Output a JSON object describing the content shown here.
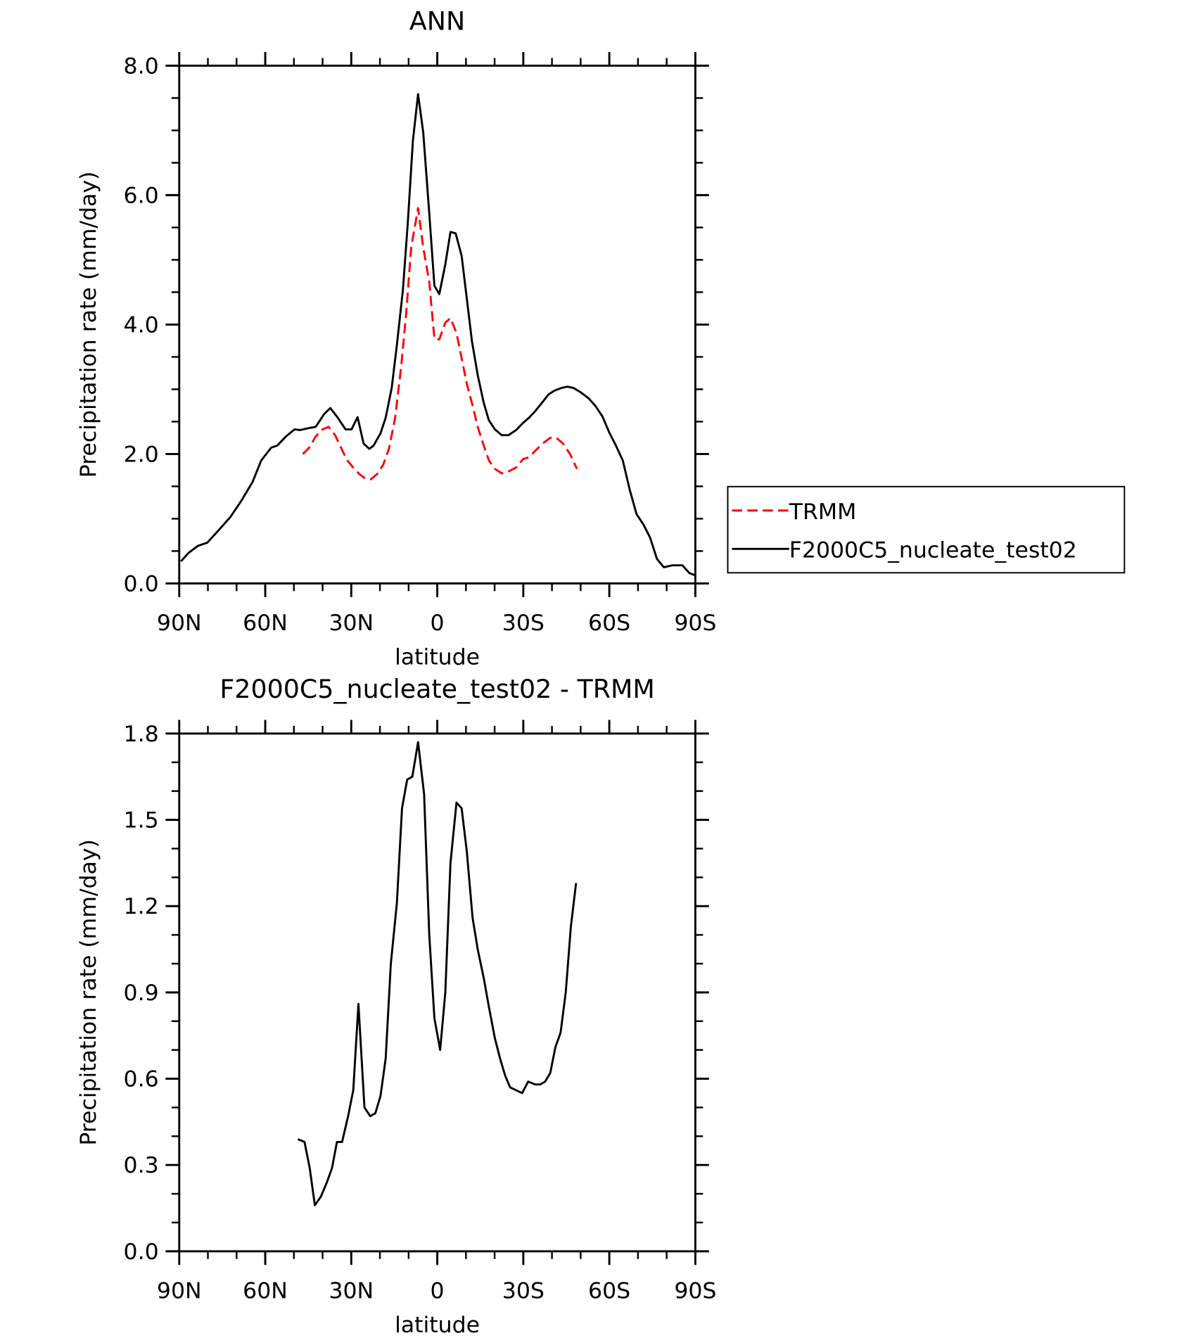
{
  "chart_data": [
    {
      "type": "line",
      "title": "ANN",
      "xlabel": "latitude",
      "ylabel": "Precipitation rate (mm/day)",
      "xlim": [
        90,
        -90
      ],
      "xticks": [
        {
          "value": 90,
          "label": "90N"
        },
        {
          "value": 60,
          "label": "60N"
        },
        {
          "value": 30,
          "label": "30N"
        },
        0,
        {
          "value": -30,
          "label": "30S"
        },
        {
          "value": -60,
          "label": "60S"
        },
        {
          "value": -90,
          "label": "90S"
        }
      ],
      "xminor": 10,
      "ylim": [
        0,
        8
      ],
      "yticks": [
        {
          "value": 0,
          "label": "0.0"
        },
        {
          "value": 2,
          "label": "2.0"
        },
        {
          "value": 4,
          "label": "4.0"
        },
        {
          "value": 6,
          "label": "6.0"
        },
        {
          "value": 8,
          "label": "8.0"
        }
      ],
      "yminor": 0.5,
      "legend": "right",
      "series": [
        {
          "name": "TRMM",
          "color": "#ff0000",
          "dashed": true,
          "x": [
            46.9,
            44.8,
            42.4,
            40.0,
            37.9,
            35.6,
            33.5,
            31.4,
            29.3,
            27.2,
            25.1,
            23.1,
            21.0,
            18.9,
            16.8,
            14.7,
            12.6,
            10.9,
            9.1,
            6.7,
            4.9,
            2.8,
            1.0,
            -0.7,
            -2.8,
            -4.6,
            -6.7,
            -8.5,
            -10.3,
            -12.3,
            -14.1,
            -16.2,
            -18.0,
            -20.1,
            -22.5,
            -24.8,
            -27.5,
            -29.9,
            -32.0,
            -34.4,
            -36.7,
            -39.4,
            -41.5,
            -43.9,
            -46.3,
            -48.7
          ],
          "values": [
            2.0,
            2.09,
            2.27,
            2.38,
            2.42,
            2.29,
            2.09,
            1.9,
            1.79,
            1.69,
            1.62,
            1.61,
            1.69,
            1.83,
            2.09,
            2.56,
            3.35,
            4.14,
            5.19,
            5.8,
            5.19,
            4.66,
            3.78,
            3.77,
            4.03,
            4.1,
            3.87,
            3.48,
            3.08,
            2.75,
            2.42,
            2.13,
            1.9,
            1.77,
            1.7,
            1.73,
            1.79,
            1.92,
            1.95,
            2.06,
            2.16,
            2.25,
            2.25,
            2.16,
            2.0,
            1.77
          ]
        },
        {
          "name": "F2000C5_nucleate_test02",
          "color": "#000000",
          "dashed": false,
          "x": [
            89.4,
            86.8,
            83.5,
            80.2,
            76.3,
            72.1,
            68.3,
            64.4,
            61.4,
            57.9,
            55.8,
            52.8,
            49.8,
            47.8,
            44.8,
            42.4,
            39.4,
            37.3,
            34.7,
            32.0,
            29.9,
            27.8,
            25.7,
            23.7,
            22.2,
            19.8,
            18.0,
            15.9,
            14.1,
            12.0,
            10.3,
            8.5,
            6.7,
            4.9,
            2.8,
            1.0,
            -0.7,
            -2.8,
            -4.6,
            -6.4,
            -8.5,
            -10.3,
            -12.1,
            -14.1,
            -16.2,
            -18.0,
            -20.1,
            -22.5,
            -24.8,
            -27.5,
            -29.9,
            -32.0,
            -34.1,
            -36.5,
            -38.8,
            -40.9,
            -43.3,
            -45.4,
            -47.5,
            -49.8,
            -52.8,
            -55.2,
            -57.6,
            -60.0,
            -62.3,
            -64.7,
            -67.1,
            -69.5,
            -71.9,
            -74.2,
            -76.6,
            -79.0,
            -82.0,
            -85.5,
            -87.9,
            -89.7
          ],
          "values": [
            0.34,
            0.47,
            0.58,
            0.63,
            0.82,
            1.03,
            1.28,
            1.57,
            1.9,
            2.1,
            2.13,
            2.27,
            2.38,
            2.37,
            2.4,
            2.42,
            2.62,
            2.71,
            2.56,
            2.38,
            2.38,
            2.57,
            2.16,
            2.08,
            2.13,
            2.32,
            2.56,
            3.02,
            3.68,
            4.53,
            5.56,
            6.84,
            7.56,
            6.97,
            5.72,
            4.6,
            4.47,
            4.93,
            5.43,
            5.41,
            5.06,
            4.4,
            3.74,
            3.22,
            2.79,
            2.52,
            2.38,
            2.29,
            2.29,
            2.37,
            2.48,
            2.56,
            2.66,
            2.79,
            2.92,
            2.98,
            3.02,
            3.04,
            3.02,
            2.96,
            2.86,
            2.74,
            2.58,
            2.33,
            2.13,
            1.9,
            1.45,
            1.07,
            0.91,
            0.71,
            0.38,
            0.25,
            0.28,
            0.28,
            0.16,
            0.13
          ]
        }
      ]
    },
    {
      "type": "line",
      "title": "F2000C5_nucleate_test02 - TRMM",
      "xlabel": "latitude",
      "ylabel": "Precipitation rate (mm/day)",
      "xlim": [
        90,
        -90
      ],
      "xticks": [
        {
          "value": 90,
          "label": "90N"
        },
        {
          "value": 60,
          "label": "60N"
        },
        {
          "value": 30,
          "label": "30N"
        },
        0,
        {
          "value": -30,
          "label": "30S"
        },
        {
          "value": -60,
          "label": "60S"
        },
        {
          "value": -90,
          "label": "90S"
        }
      ],
      "xminor": 10,
      "ylim": [
        0,
        1.8
      ],
      "yticks": [
        {
          "value": 0,
          "label": "0.0"
        },
        0.3,
        0.6,
        0.9,
        1.2,
        1.5,
        1.8
      ],
      "yminor": 0.1,
      "series": [
        {
          "color": "#000000",
          "dashed": false,
          "x": [
            48.6,
            46.3,
            44.5,
            42.7,
            40.6,
            38.5,
            36.7,
            35.0,
            33.2,
            31.1,
            29.3,
            27.5,
            25.4,
            23.4,
            21.6,
            19.8,
            18.0,
            16.2,
            14.1,
            12.3,
            10.5,
            8.7,
            6.7,
            4.6,
            2.8,
            1.0,
            -1.0,
            -2.8,
            -4.6,
            -6.7,
            -8.5,
            -10.3,
            -12.3,
            -14.1,
            -16.2,
            -18.0,
            -20.1,
            -21.9,
            -23.7,
            -25.4,
            -27.5,
            -29.6,
            -31.7,
            -34.1,
            -35.9,
            -37.6,
            -39.4,
            -41.2,
            -43.0,
            -44.8,
            -46.6,
            -48.4
          ],
          "values": [
            0.39,
            0.38,
            0.29,
            0.16,
            0.19,
            0.24,
            0.29,
            0.38,
            0.38,
            0.47,
            0.56,
            0.86,
            0.5,
            0.47,
            0.48,
            0.54,
            0.67,
            1.0,
            1.21,
            1.54,
            1.64,
            1.65,
            1.77,
            1.59,
            1.1,
            0.81,
            0.7,
            0.9,
            1.35,
            1.56,
            1.54,
            1.39,
            1.16,
            1.05,
            0.95,
            0.85,
            0.74,
            0.67,
            0.61,
            0.57,
            0.56,
            0.55,
            0.59,
            0.58,
            0.58,
            0.59,
            0.62,
            0.71,
            0.76,
            0.9,
            1.13,
            1.28
          ]
        }
      ]
    }
  ]
}
